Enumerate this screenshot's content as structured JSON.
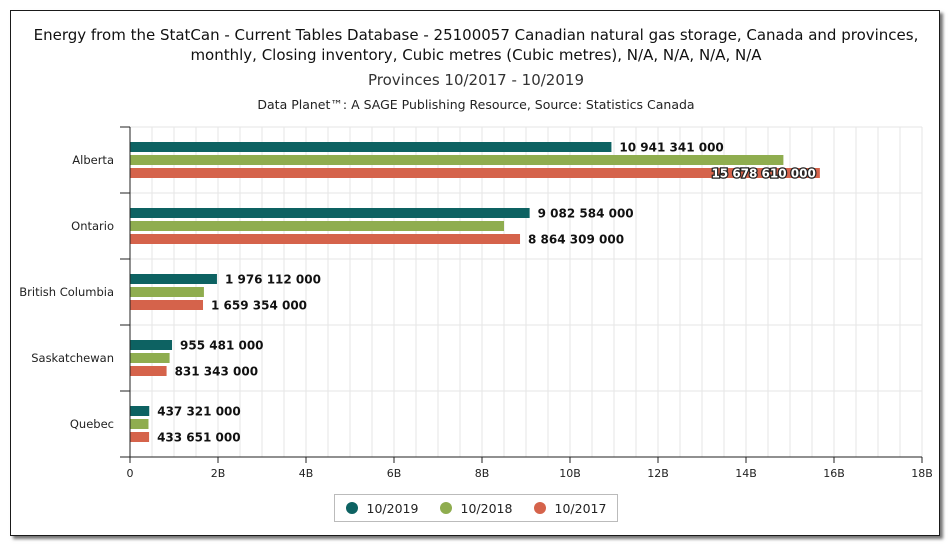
{
  "header": {
    "title_line1": "Energy from the StatCan - Current Tables Database - 25100057 Canadian natural gas storage, Canada and provinces,",
    "title_line2": "monthly, Closing inventory, Cubic metres (Cubic metres), N/A, N/A, N/A, N/A",
    "subtitle": "Provinces 10/2017 - 10/2019",
    "source": "Data Planet™: A SAGE Publishing Resource, Source: Statistics Canada"
  },
  "chart_data": {
    "type": "bar",
    "orientation": "horizontal",
    "categories": [
      "Alberta",
      "Ontario",
      "British Columbia",
      "Saskatchewan",
      "Quebec"
    ],
    "series": [
      {
        "name": "10/2019",
        "color": "#0d6262",
        "values": [
          10941341000,
          9082584000,
          1976112000,
          955481000,
          437321000
        ],
        "labels": [
          "10 941 341 000",
          "9 082 584 000",
          "1 976 112 000",
          "955 481 000",
          "437 321 000"
        ]
      },
      {
        "name": "10/2018",
        "color": "#8fad4f",
        "values": [
          14850000000,
          8500000000,
          1680000000,
          900000000,
          420000000
        ],
        "labels": [
          "",
          "",
          "",
          "",
          ""
        ]
      },
      {
        "name": "10/2017",
        "color": "#d5634b",
        "values": [
          15678610000,
          8864309000,
          1659354000,
          831343000,
          433651000
        ],
        "labels": [
          "15 678 610 000",
          "8 864 309 000",
          "1 659 354 000",
          "831 343 000",
          "433 651 000"
        ]
      }
    ],
    "xlim": [
      0,
      18000000000
    ],
    "x_ticks": [
      0,
      2000000000,
      4000000000,
      6000000000,
      8000000000,
      10000000000,
      12000000000,
      14000000000,
      16000000000,
      18000000000
    ],
    "x_tick_labels": [
      "0",
      "2B",
      "4B",
      "6B",
      "8B",
      "10B",
      "12B",
      "14B",
      "16B",
      "18B"
    ],
    "grid": true,
    "legend_position": "bottom-center"
  }
}
